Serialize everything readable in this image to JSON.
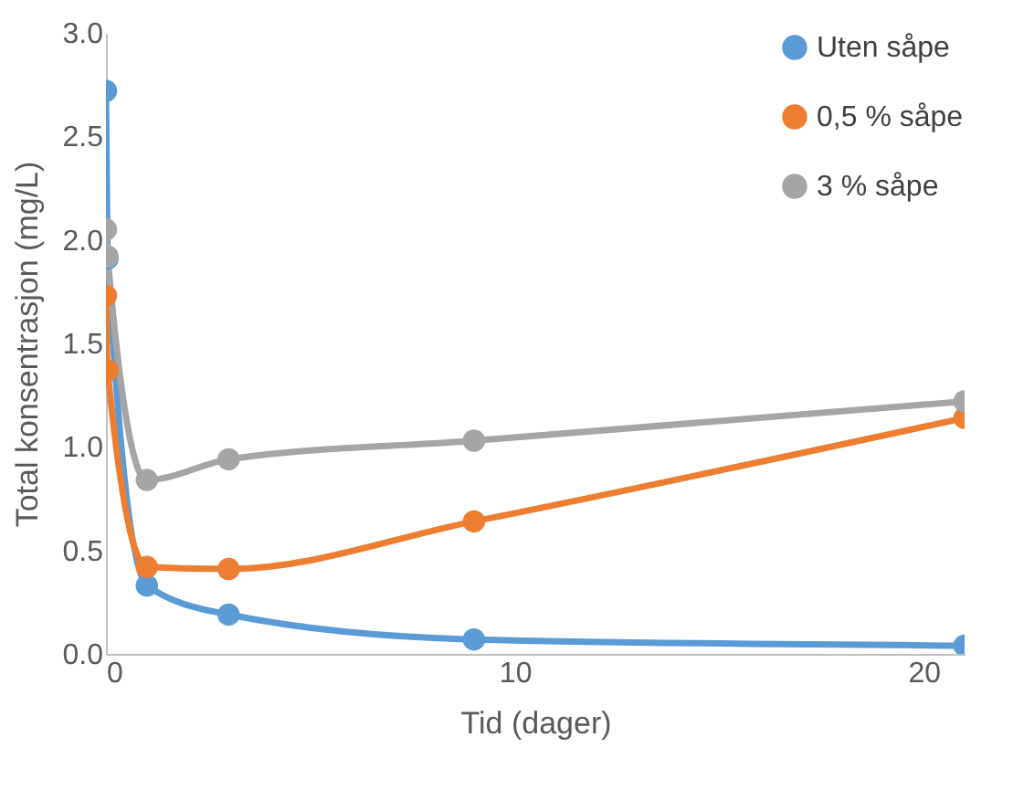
{
  "chart_data": {
    "type": "line",
    "xlabel": "Tid (dager)",
    "ylabel": "Total konsentrasjon (mg/L)",
    "x": [
      0,
      0.04,
      1,
      3,
      9,
      21
    ],
    "series": [
      {
        "name": "Uten såpe",
        "color": "#5b9bd5",
        "values": [
          2.72,
          1.91,
          0.33,
          0.19,
          0.07,
          0.04
        ]
      },
      {
        "name": "0,5 % såpe",
        "color": "#ed7d31",
        "values": [
          1.73,
          1.37,
          0.42,
          0.41,
          0.64,
          1.14
        ]
      },
      {
        "name": "3 % såpe",
        "color": "#a5a5a5",
        "values": [
          2.05,
          1.92,
          0.84,
          0.94,
          1.03,
          1.22
        ]
      }
    ],
    "xlim": [
      0,
      21
    ],
    "xticks": [
      0,
      10,
      20
    ],
    "ylim": [
      0,
      3
    ],
    "yticks": [
      {
        "value": 0,
        "label": "0.0"
      },
      0.5,
      {
        "value": 1,
        "label": "1.0"
      },
      1.5,
      {
        "value": 2,
        "label": "2.0"
      },
      2.5,
      {
        "value": 3,
        "label": "3.0"
      }
    ],
    "grid": false,
    "legend": "top right",
    "marker": "circle",
    "line_style": "solid"
  }
}
